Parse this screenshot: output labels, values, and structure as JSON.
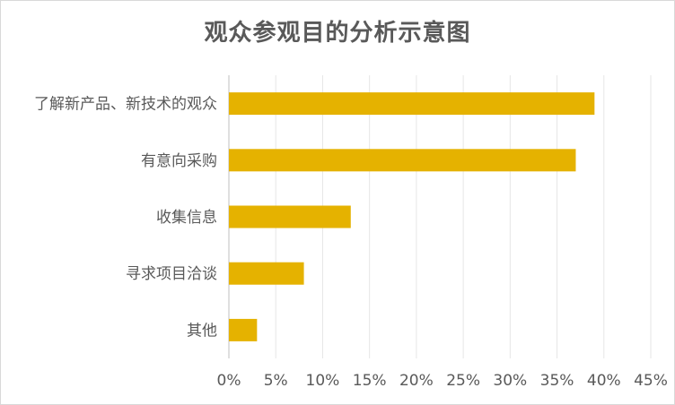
{
  "chart_data": {
    "type": "bar",
    "orientation": "horizontal",
    "title": "观众参观目的分析示意图",
    "categories": [
      "了解新产品、新技术的观众",
      "有意向采购",
      "收集信息",
      "寻求项目洽谈",
      "其他"
    ],
    "values": [
      39,
      37,
      13,
      8,
      3
    ],
    "value_unit": "%",
    "xlim": [
      0,
      45
    ],
    "x_ticks": [
      "0%",
      "5%",
      "10%",
      "15%",
      "20%",
      "25%",
      "30%",
      "35%",
      "40%",
      "45%"
    ],
    "xlabel": "",
    "ylabel": "",
    "grid": "vertical",
    "legend": "none",
    "bar_color": "#E5B200"
  }
}
